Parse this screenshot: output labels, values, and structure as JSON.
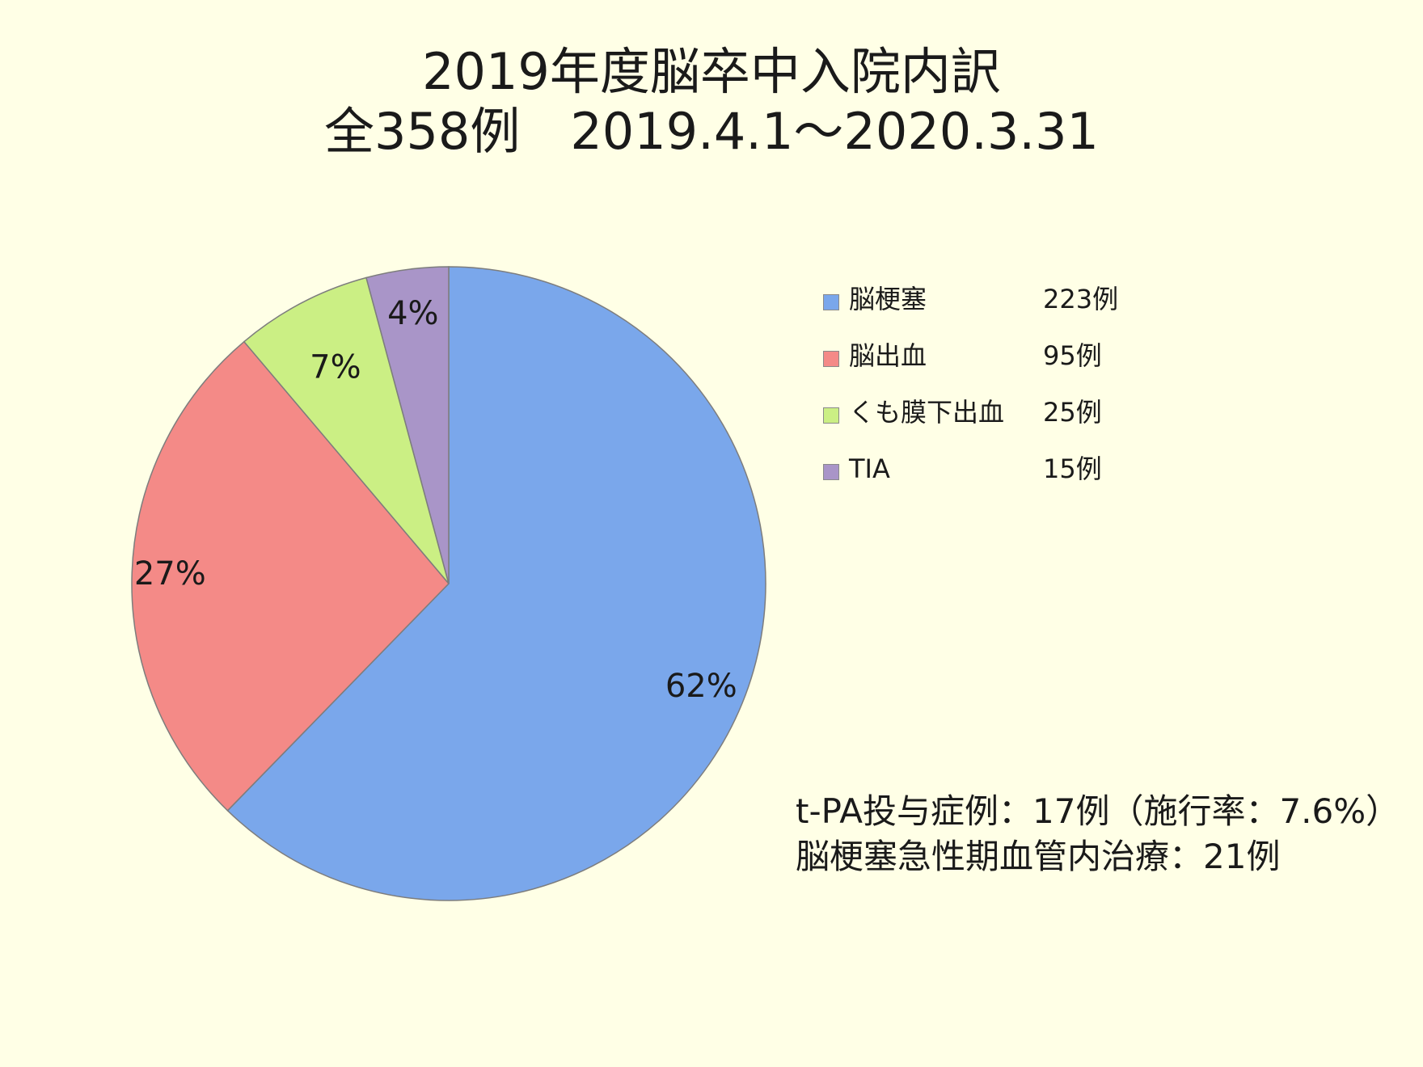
{
  "title": {
    "line1": "2019年度脳卒中入院内訳",
    "line2": "全358例　2019.4.1～2020.3.31"
  },
  "chart_data": {
    "type": "pie",
    "categories": [
      "脳梗塞",
      "脳出血",
      "くも膜下出血",
      "TIA"
    ],
    "values": [
      223,
      95,
      25,
      15
    ],
    "count_labels": [
      "223例",
      "95例",
      "25例",
      "15例"
    ],
    "percent_labels": [
      "62%",
      "27%",
      "7%",
      "4%"
    ],
    "colors": [
      "#7aa7eb",
      "#f48a87",
      "#cbef84",
      "#a995c8"
    ],
    "start_angle": "top",
    "direction": "clockwise",
    "legend_position": "right"
  },
  "notes": {
    "line1": "t-PA投与症例：17例（施行率：7.6%）",
    "line2": "脳梗塞急性期血管内治療：21例"
  }
}
